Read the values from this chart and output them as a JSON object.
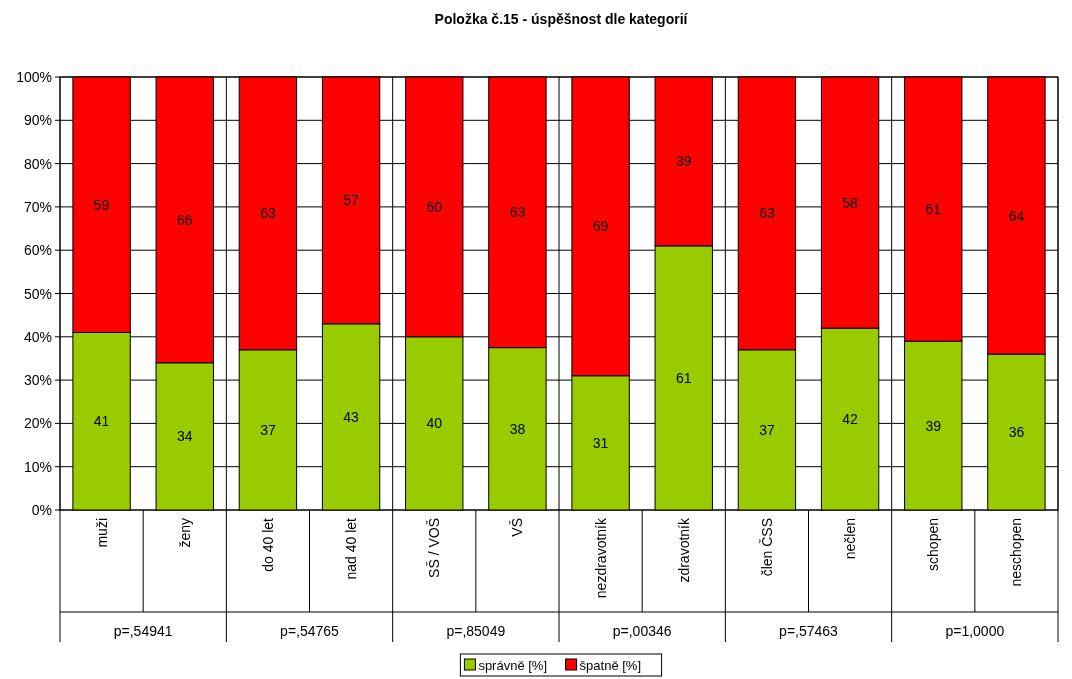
{
  "chart_data": {
    "type": "bar",
    "title": "Položka č.15 - úspěšnost dle kategorií",
    "stacked": true,
    "grid": "y",
    "legend": "bottom",
    "categories": [
      "muži",
      "ženy",
      "do 40 let",
      "nad 40 let",
      "SŠ / VOŠ",
      "VŠ",
      "nezdravotník",
      "zdravotník",
      "člen ČSS",
      "nečlen",
      "schopen",
      "neschopen"
    ],
    "series": [
      {
        "name": "správně [%]",
        "color": "#99cc00",
        "values": [
          41,
          34,
          37,
          43,
          40,
          37.5,
          31,
          61,
          37,
          42,
          39,
          36
        ],
        "value_labels": [
          "41",
          "34",
          "37",
          "43",
          "40",
          "38",
          "31",
          "61",
          "37",
          "42",
          "39",
          "36"
        ]
      },
      {
        "name": "špatně [%]",
        "color": "#ff0000",
        "values": [
          59,
          66,
          63,
          57,
          60,
          62.5,
          69,
          39,
          63,
          58,
          61,
          64
        ],
        "value_labels": [
          "59",
          "66",
          "63",
          "57",
          "60",
          "63",
          "69",
          "39",
          "63",
          "58",
          "61",
          "64"
        ]
      }
    ],
    "ylim": [
      0,
      100
    ],
    "yticks": [
      {
        "value": 0,
        "label": "0%"
      },
      {
        "value": 10,
        "label": "10%"
      },
      {
        "value": 20,
        "label": "20%"
      },
      {
        "value": 30,
        "label": "30%"
      },
      {
        "value": 40,
        "label": "40%"
      },
      {
        "value": 50,
        "label": "50%"
      },
      {
        "value": 60,
        "label": "60%"
      },
      {
        "value": 70,
        "label": "70%"
      },
      {
        "value": 80,
        "label": "80%"
      },
      {
        "value": 90,
        "label": "90%"
      },
      {
        "value": 100,
        "label": "100%"
      }
    ],
    "annotations": [
      "p=,54941",
      "p=,54765",
      "p=,85049",
      "p=,00346",
      "p=,57463",
      "p=1,0000"
    ]
  }
}
